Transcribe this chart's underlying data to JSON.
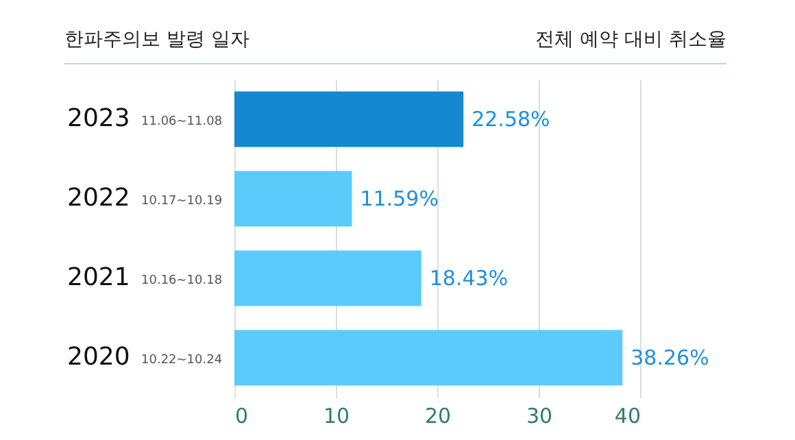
{
  "chart_data": {
    "type": "bar",
    "orientation": "horizontal",
    "ylabel": "한파주의보 발령 일자",
    "xlabel": "전체 예약 대비 취소율",
    "categories": [
      "2023 11.06~11.08",
      "2022 10.17~10.19",
      "2021 10.16~10.18",
      "2020 10.22~10.24"
    ],
    "values": [
      22.58,
      11.59,
      18.43,
      38.26
    ],
    "value_labels": [
      "22.58%",
      "11.59%",
      "18.43%",
      "38.26%"
    ],
    "colors": [
      "#1488d0",
      "#5bcbfc",
      "#5bcbfc",
      "#5bcbfc"
    ],
    "xlim": [
      0,
      40
    ],
    "xticks": [
      0,
      10,
      20,
      30,
      40
    ],
    "grid": "x"
  }
}
